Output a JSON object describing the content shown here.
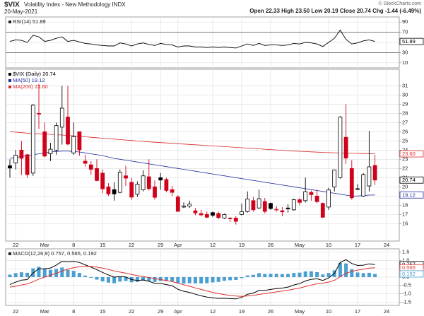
{
  "header": {
    "symbol": "$VIX",
    "name": "Volatility Index - New Methodology  INDX",
    "date": "20-May-2021",
    "copyright": "© StockCharts.com",
    "quote": "Open 22.33  High 23.50  Low 20.19  Close 20.74  Chg -1.44 (-6.49%)"
  },
  "chart_data": [
    {
      "type": "line",
      "legend": "RSI(14) 51.89",
      "ylim": [
        0,
        100
      ],
      "yticks": [
        90,
        70,
        50,
        30,
        10
      ],
      "hlines": [
        70,
        30
      ],
      "grid": true,
      "series": [
        {
          "color": "#000000",
          "values": [
            52,
            55,
            54,
            50,
            64,
            61,
            52,
            54,
            58,
            61,
            52,
            54,
            51,
            48,
            47,
            45,
            44,
            43,
            43,
            49,
            47,
            43,
            47,
            49,
            46,
            44,
            48,
            46,
            45,
            41,
            43,
            43,
            41,
            41,
            40,
            41,
            40,
            41,
            40,
            39,
            43,
            47,
            44,
            48,
            44,
            45,
            45,
            44,
            45,
            48,
            47,
            50,
            49,
            47,
            42,
            50,
            58,
            74,
            56,
            47,
            49,
            53,
            55,
            51.89,
            null,
            null
          ]
        }
      ],
      "tags": [
        {
          "value": 51.89,
          "label": "51.89",
          "color": "#000000"
        }
      ]
    },
    {
      "type": "candlestick",
      "legend": [
        "$VIX (Daily) 20.74",
        "MA(50) 19.12",
        "MA(200) 23.60"
      ],
      "categories": [
        null,
        "22",
        null,
        null,
        null,
        null,
        "Mar",
        null,
        null,
        null,
        null,
        "8",
        null,
        null,
        null,
        null,
        "15",
        null,
        null,
        null,
        null,
        "22",
        null,
        null,
        null,
        null,
        "29",
        null,
        null,
        "Apr",
        null,
        null,
        null,
        null,
        null,
        "12",
        null,
        null,
        null,
        null,
        "19",
        null,
        null,
        null,
        null,
        "26",
        null,
        null,
        null,
        null,
        "May",
        null,
        null,
        null,
        null,
        "10",
        null,
        null,
        null,
        null,
        "17",
        null,
        null,
        null,
        null,
        "24"
      ],
      "up_color": "#000000",
      "down_color": "#d0021b",
      "open": [
        22.3,
        22.6,
        24.0,
        23.5,
        21.5,
        28.0,
        26.0,
        23.6,
        24.0,
        26.5,
        27.6,
        23.7,
        26.0,
        22.8,
        22.4,
        22.0,
        21.5,
        20.0,
        19.7,
        19.4,
        21.2,
        20.5,
        19.2,
        19.7,
        21.1,
        20.0,
        21.0,
        20.8,
        19.7,
        18.9,
        17.8,
        17.9,
        17.4,
        17.1,
        17.0,
        17.2,
        17.1,
        16.6,
        16.6,
        16.6,
        17.0,
        17.3,
        18.5,
        17.7,
        18.4,
        18.2,
        17.5,
        17.4,
        17.7,
        17.5,
        18.6,
        18.5,
        19.4,
        19.0,
        18.2,
        17.8,
        20.0,
        21.0,
        25.4,
        22.0,
        19.8,
        19.0,
        20.1,
        22.33,
        null,
        null
      ],
      "high": [
        23.0,
        24.0,
        25.0,
        23.6,
        29.0,
        31.2,
        27.0,
        24.8,
        27.0,
        31.0,
        31.0,
        27.0,
        26.0,
        23.5,
        22.8,
        23.0,
        21.9,
        20.4,
        20.5,
        21.9,
        22.3,
        21.0,
        20.6,
        21.8,
        23.0,
        20.7,
        21.5,
        21.0,
        20.1,
        19.1,
        18.3,
        18.5,
        17.7,
        17.5,
        17.3,
        17.3,
        17.3,
        17.1,
        16.7,
        16.8,
        18.2,
        19.5,
        18.9,
        19.7,
        18.8,
        18.3,
        17.9,
        17.8,
        18.1,
        18.7,
        18.8,
        21.0,
        19.6,
        19.7,
        18.3,
        19.9,
        21.9,
        27.7,
        29.0,
        22.9,
        20.3,
        21.5,
        26.1,
        23.5,
        null,
        null
      ],
      "low": [
        21.0,
        21.9,
        21.3,
        21.0,
        21.2,
        26.3,
        23.2,
        22.8,
        23.5,
        24.6,
        24.5,
        23.5,
        23.4,
        22.2,
        21.3,
        20.6,
        19.3,
        19.0,
        18.5,
        19.3,
        20.1,
        18.6,
        18.9,
        19.5,
        19.6,
        18.6,
        19.7,
        19.4,
        19.0,
        17.3,
        17.7,
        17.7,
        16.9,
        16.8,
        16.6,
        16.7,
        16.5,
        16.5,
        16.2,
        15.9,
        16.9,
        17.2,
        17.3,
        17.6,
        17.1,
        17.5,
        17.3,
        16.8,
        17.2,
        17.4,
        18.0,
        18.3,
        18.5,
        18.2,
        16.6,
        17.5,
        19.5,
        20.9,
        22.5,
        18.6,
        19.7,
        18.9,
        19.5,
        20.19,
        null,
        null
      ],
      "close": [
        22.05,
        23.45,
        23.11,
        21.34,
        28.89,
        27.95,
        23.35,
        24.1,
        26.67,
        28.57,
        24.66,
        25.47,
        24.03,
        22.56,
        21.91,
        20.69,
        19.79,
        19.23,
        19.23,
        21.58,
        20.95,
        18.88,
        20.3,
        21.2,
        19.81,
        18.86,
        20.74,
        19.61,
        19.4,
        17.33,
        17.91,
        18.12,
        17.16,
        16.95,
        16.69,
        16.91,
        16.65,
        16.99,
        16.57,
        16.25,
        17.29,
        18.68,
        17.5,
        18.71,
        17.33,
        17.64,
        17.56,
        17.28,
        17.61,
        18.61,
        18.31,
        19.48,
        19.15,
        18.39,
        16.69,
        19.66,
        21.84,
        27.59,
        23.13,
        18.81,
        19.72,
        21.34,
        22.18,
        20.74,
        null,
        null
      ],
      "series": [
        {
          "color": "#1f2a9c",
          "values": [
            23.1,
            23.2,
            23.3,
            23.4,
            23.5,
            23.6,
            23.7,
            23.8,
            23.85,
            23.9,
            23.9,
            23.85,
            23.8,
            23.7,
            23.6,
            23.5,
            23.4,
            23.25,
            23.1,
            23.0,
            22.9,
            22.8,
            22.7,
            22.6,
            22.5,
            22.4,
            22.3,
            22.2,
            22.1,
            22.0,
            21.9,
            21.8,
            21.7,
            21.6,
            21.5,
            21.4,
            21.3,
            21.2,
            21.1,
            21.0,
            20.9,
            20.8,
            20.7,
            20.6,
            20.5,
            20.4,
            20.3,
            20.2,
            20.1,
            20.0,
            19.9,
            19.8,
            19.7,
            19.6,
            19.5,
            19.4,
            19.3,
            19.2,
            19.1,
            19.0,
            19.0,
            19.05,
            19.1,
            19.12,
            null,
            null
          ]
        },
        {
          "color": "#d62728",
          "values": [
            26.0,
            25.95,
            25.9,
            25.85,
            25.8,
            25.78,
            25.75,
            25.72,
            25.68,
            25.64,
            25.6,
            25.55,
            25.5,
            25.45,
            25.4,
            25.35,
            25.3,
            25.25,
            25.2,
            25.15,
            25.1,
            25.05,
            25.0,
            24.95,
            24.9,
            24.86,
            24.82,
            24.78,
            24.74,
            24.7,
            24.66,
            24.62,
            24.58,
            24.54,
            24.5,
            24.46,
            24.42,
            24.38,
            24.34,
            24.3,
            24.26,
            24.22,
            24.18,
            24.14,
            24.1,
            24.06,
            24.02,
            23.98,
            23.94,
            23.9,
            23.87,
            23.84,
            23.81,
            23.78,
            23.75,
            23.73,
            23.71,
            23.69,
            23.67,
            23.65,
            23.64,
            23.63,
            23.62,
            23.6,
            null,
            null
          ]
        }
      ],
      "ylim": [
        14.1,
        32.8
      ],
      "yticks": [
        16,
        17,
        18,
        19,
        20,
        21,
        22,
        23,
        24,
        25,
        26,
        27,
        28,
        29,
        30,
        31
      ],
      "grid": true,
      "tags": [
        {
          "value": 23.6,
          "label": "23.60",
          "color": "#d62728"
        },
        {
          "value": 20.74,
          "label": "20.74",
          "color": "#000000"
        },
        {
          "value": 19.12,
          "label": "19.12",
          "color": "#1f2a9c"
        }
      ]
    },
    {
      "type": "macd",
      "legend": "MACD(12,26,9) 0.757, 0.565, 0.192",
      "categories": [
        null,
        "22",
        null,
        null,
        null,
        null,
        "Mar",
        null,
        null,
        null,
        null,
        "8",
        null,
        null,
        null,
        null,
        "15",
        null,
        null,
        null,
        null,
        "22",
        null,
        null,
        null,
        null,
        "29",
        null,
        null,
        "Apr",
        null,
        null,
        null,
        null,
        null,
        "12",
        null,
        null,
        null,
        null,
        "19",
        null,
        null,
        null,
        null,
        "26",
        null,
        null,
        null,
        null,
        "May",
        null,
        null,
        null,
        null,
        "10",
        null,
        null,
        null,
        null,
        "17",
        null,
        null,
        null,
        null,
        "24"
      ],
      "series": [
        {
          "color": "#4a9fd0",
          "style": "bar",
          "values": [
            0.15,
            0.24,
            0.29,
            0.26,
            0.53,
            0.62,
            0.5,
            0.44,
            0.49,
            0.58,
            0.44,
            0.38,
            0.25,
            0.09,
            -0.04,
            -0.15,
            -0.26,
            -0.33,
            -0.37,
            -0.27,
            -0.23,
            -0.31,
            -0.29,
            -0.21,
            -0.23,
            -0.29,
            -0.23,
            -0.24,
            -0.25,
            -0.37,
            -0.39,
            -0.37,
            -0.38,
            -0.38,
            -0.37,
            -0.32,
            -0.29,
            -0.22,
            -0.19,
            -0.17,
            -0.06,
            0.1,
            0.14,
            0.24,
            0.19,
            0.2,
            0.2,
            0.18,
            0.19,
            0.25,
            0.27,
            0.34,
            0.35,
            0.3,
            0.16,
            0.25,
            0.41,
            0.86,
            0.82,
            0.47,
            0.28,
            0.24,
            0.26,
            0.192,
            null,
            null
          ]
        },
        {
          "color": "#000000",
          "style": "line",
          "values": [
            -0.45,
            -0.3,
            -0.18,
            -0.15,
            0.25,
            0.5,
            0.5,
            0.55,
            0.72,
            0.95,
            0.92,
            0.95,
            0.88,
            0.74,
            0.6,
            0.45,
            0.28,
            0.13,
            0.0,
            0.03,
            0.01,
            -0.15,
            -0.2,
            -0.17,
            -0.25,
            -0.38,
            -0.38,
            -0.45,
            -0.52,
            -0.73,
            -0.85,
            -0.92,
            -1.03,
            -1.12,
            -1.2,
            -1.24,
            -1.28,
            -1.27,
            -1.29,
            -1.31,
            -1.22,
            -1.03,
            -0.96,
            -0.8,
            -0.8,
            -0.74,
            -0.69,
            -0.66,
            -0.6,
            -0.47,
            -0.39,
            -0.23,
            -0.13,
            -0.1,
            -0.2,
            -0.05,
            0.22,
            0.88,
            1.05,
            0.82,
            0.7,
            0.72,
            0.8,
            0.757,
            null,
            null
          ]
        },
        {
          "color": "#e03030",
          "style": "line",
          "values": [
            -0.6,
            -0.54,
            -0.47,
            -0.41,
            -0.28,
            -0.12,
            0.0,
            0.11,
            0.23,
            0.37,
            0.48,
            0.57,
            0.63,
            0.65,
            0.64,
            0.6,
            0.54,
            0.46,
            0.37,
            0.3,
            0.24,
            0.16,
            0.09,
            0.04,
            -0.02,
            -0.09,
            -0.15,
            -0.21,
            -0.27,
            -0.36,
            -0.46,
            -0.55,
            -0.65,
            -0.74,
            -0.83,
            -0.92,
            -0.99,
            -1.05,
            -1.1,
            -1.14,
            -1.16,
            -1.13,
            -1.1,
            -1.04,
            -0.99,
            -0.94,
            -0.89,
            -0.84,
            -0.79,
            -0.72,
            -0.66,
            -0.57,
            -0.48,
            -0.4,
            -0.36,
            -0.3,
            -0.19,
            0.02,
            0.23,
            0.35,
            0.42,
            0.48,
            0.54,
            0.565,
            null,
            null
          ]
        }
      ],
      "ylim": [
        -1.7,
        1.7
      ],
      "yticks": [
        1.5,
        {
          "value": 1,
          "label": "1.0"
        },
        0.5,
        {
          "value": 0,
          "label": "0.0"
        },
        -0.5,
        {
          "value": -1,
          "label": "-1.0"
        },
        -1.5
      ],
      "grid": true,
      "tags": [
        {
          "value": 0.757,
          "label": "0.757",
          "color": "#000000"
        },
        {
          "value": 0.565,
          "label": "0.565",
          "color": "#e03030"
        },
        {
          "value": 0.192,
          "label": "0.192",
          "color": "#4a9fd0"
        }
      ]
    }
  ]
}
